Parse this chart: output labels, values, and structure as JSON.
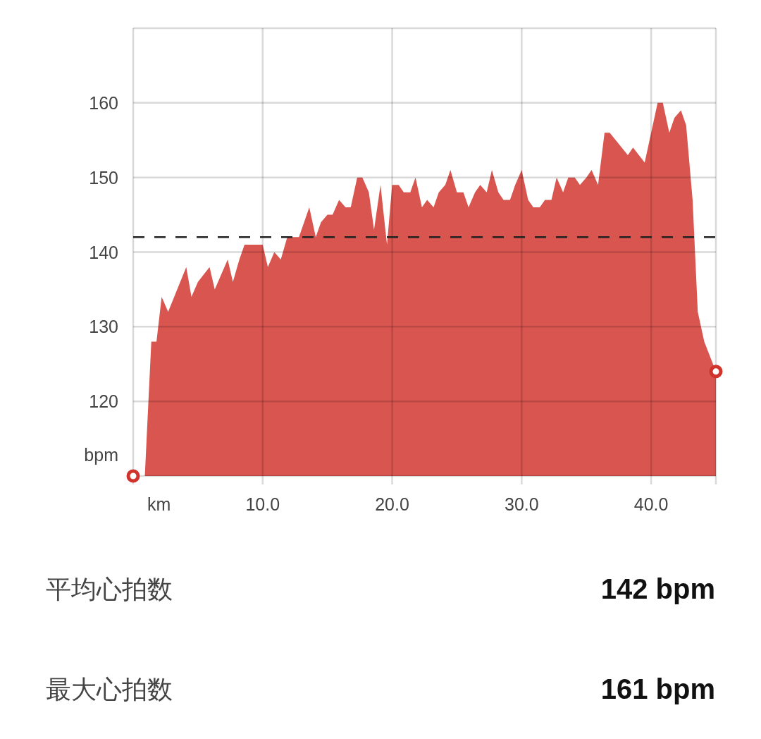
{
  "chart_data": [
    {
      "type": "area",
      "xlabel": "km",
      "ylabel": "bpm",
      "xlim": [
        0,
        45
      ],
      "ylim": [
        110,
        170
      ],
      "xticks": [
        {
          "value": 0,
          "label": null
        },
        {
          "value": 10,
          "label": "10.0"
        },
        {
          "value": 20,
          "label": "20.0"
        },
        {
          "value": 30,
          "label": "30.0"
        },
        {
          "value": 40,
          "label": "40.0"
        },
        {
          "value": 45,
          "label": null
        }
      ],
      "yticks": [
        {
          "value": 110,
          "label": null
        },
        120,
        130,
        140,
        150,
        160,
        {
          "value": 170,
          "label": null
        }
      ],
      "grid": true,
      "ref_lines": [
        {
          "axis": "y",
          "value": 142,
          "color": "#222222",
          "line_style": "dashed"
        }
      ],
      "series": [
        {
          "type": "area",
          "color": "#d9554f",
          "x": [
            0.9,
            1.4,
            1.8,
            2.2,
            2.7,
            4.1,
            4.5,
            5.0,
            5.9,
            6.3,
            7.3,
            7.7,
            8.2,
            8.6,
            10.0,
            10.4,
            10.9,
            11.4,
            11.9,
            12.8,
            13.6,
            14.1,
            14.5,
            15.0,
            15.4,
            15.9,
            16.4,
            16.8,
            17.3,
            17.7,
            18.2,
            18.6,
            19.1,
            19.6,
            20.0,
            20.5,
            20.9,
            21.4,
            21.8,
            22.3,
            22.7,
            23.2,
            23.6,
            24.1,
            24.5,
            25.0,
            25.5,
            25.9,
            26.4,
            26.8,
            27.3,
            27.7,
            28.2,
            28.6,
            29.1,
            29.5,
            30.0,
            30.5,
            30.9,
            31.4,
            31.8,
            32.3,
            32.7,
            33.2,
            33.6,
            34.1,
            34.5,
            35.0,
            35.4,
            35.9,
            36.4,
            36.8,
            38.2,
            38.6,
            39.5,
            40.0,
            40.5,
            40.9,
            41.4,
            41.8,
            42.3,
            42.7,
            43.2,
            43.6,
            44.1,
            45
          ],
          "values": [
            110,
            128,
            128,
            134,
            132,
            138,
            134,
            136,
            138,
            135,
            139,
            136,
            139,
            141,
            141,
            138,
            140,
            139,
            142,
            142,
            146,
            142,
            144,
            145,
            145,
            147,
            146,
            146,
            150,
            150,
            148,
            143,
            149,
            141,
            149,
            149,
            148,
            148,
            150,
            146,
            147,
            146,
            148,
            149,
            151,
            148,
            148,
            146,
            148,
            149,
            148,
            151,
            148,
            147,
            147,
            149,
            151,
            147,
            146,
            146,
            147,
            147,
            150,
            148,
            150,
            150,
            149,
            150,
            151,
            149,
            156,
            156,
            153,
            154,
            152,
            156,
            160,
            160,
            156,
            158,
            159,
            157,
            147,
            132,
            128,
            124
          ]
        },
        {
          "type": "scatter",
          "color": "#d0342c",
          "marker": "circle",
          "x": [
            0,
            45
          ],
          "values": [
            110,
            124
          ]
        }
      ]
    },
    {
      "type": "other",
      "annotations": [
        "平均心拍数",
        "142 bpm",
        "最大心拍数",
        "161 bpm"
      ]
    }
  ]
}
